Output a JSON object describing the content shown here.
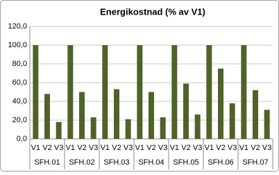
{
  "chart_data": {
    "type": "bar",
    "title": "Energikostnad (% av V1)",
    "categories": [
      "V1",
      "V2",
      "V3",
      "V1",
      "V2",
      "V3",
      "V1",
      "V2",
      "V3",
      "V1",
      "V2",
      "V3",
      "V1",
      "V2",
      "V3",
      "V1",
      "V2",
      "V3",
      "V1",
      "V2",
      "V3"
    ],
    "groups": [
      "SFH.01",
      "SFH.02",
      "SFH.03",
      "SFH.04",
      "SFH.05",
      "SFH.06",
      "SFH.07"
    ],
    "values": [
      100,
      48,
      18,
      100,
      50,
      23,
      100,
      53,
      21,
      100,
      50,
      23,
      100,
      59,
      26,
      100,
      75,
      38,
      100,
      52,
      31
    ],
    "color": "#4f6228",
    "ylim": [
      0,
      120
    ],
    "yticks": [
      {
        "value": 0,
        "label": "0,0"
      },
      {
        "value": 20,
        "label": "20,0"
      },
      {
        "value": 40,
        "label": "40,0"
      },
      {
        "value": 60,
        "label": "60,0"
      },
      {
        "value": 80,
        "label": "80,0"
      },
      {
        "value": 100,
        "label": "100,0"
      },
      {
        "value": 120,
        "label": "120,0"
      }
    ],
    "grid": true
  }
}
